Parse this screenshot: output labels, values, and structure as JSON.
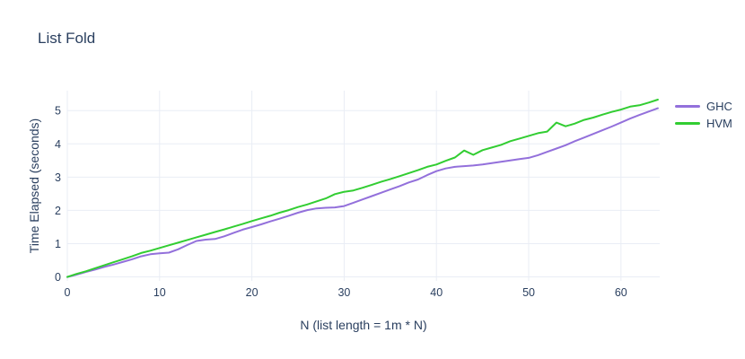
{
  "title": "List Fold",
  "colors": {
    "text": "#2a3f5f",
    "grid": "#e9edf5",
    "background": "#ffffff",
    "ghc_line": "#9370db",
    "hvm_line": "#32cd32"
  },
  "legend": {
    "items": [
      {
        "label": "GHC",
        "color": "#9370db"
      },
      {
        "label": "HVM",
        "color": "#32cd32"
      }
    ]
  },
  "chart_data": {
    "type": "line",
    "title": "List Fold",
    "xlabel": "N (list length = 1m * N)",
    "ylabel": "Time Elapsed (seconds)",
    "xlim": [
      0,
      64.2
    ],
    "ylim": [
      -0.12,
      5.6
    ],
    "xticks": [
      0,
      10,
      20,
      30,
      40,
      50,
      60
    ],
    "yticks": [
      0,
      1,
      2,
      3,
      4,
      5
    ],
    "grid": true,
    "legend_position": "outside-right-top",
    "x": [
      0,
      1,
      2,
      3,
      4,
      5,
      6,
      7,
      8,
      9,
      10,
      11,
      12,
      13,
      14,
      15,
      16,
      17,
      18,
      19,
      20,
      21,
      22,
      23,
      24,
      25,
      26,
      27,
      28,
      29,
      30,
      31,
      32,
      33,
      34,
      35,
      36,
      37,
      38,
      39,
      40,
      41,
      42,
      43,
      44,
      45,
      46,
      47,
      48,
      49,
      50,
      51,
      52,
      53,
      54,
      55,
      56,
      57,
      58,
      59,
      60,
      61,
      62,
      63,
      64
    ],
    "series": [
      {
        "name": "GHC",
        "color": "#9370db",
        "values": [
          0.0,
          0.07,
          0.15,
          0.22,
          0.3,
          0.37,
          0.45,
          0.53,
          0.62,
          0.68,
          0.71,
          0.73,
          0.83,
          0.96,
          1.08,
          1.12,
          1.14,
          1.22,
          1.32,
          1.42,
          1.5,
          1.58,
          1.67,
          1.75,
          1.84,
          1.93,
          2.01,
          2.06,
          2.08,
          2.09,
          2.13,
          2.23,
          2.33,
          2.43,
          2.53,
          2.63,
          2.73,
          2.84,
          2.93,
          3.06,
          3.18,
          3.26,
          3.31,
          3.33,
          3.35,
          3.38,
          3.42,
          3.46,
          3.5,
          3.54,
          3.58,
          3.66,
          3.76,
          3.86,
          3.96,
          4.08,
          4.19,
          4.3,
          4.41,
          4.52,
          4.64,
          4.76,
          4.87,
          4.97,
          5.07
        ]
      },
      {
        "name": "HVM",
        "color": "#32cd32",
        "values": [
          0.0,
          0.09,
          0.17,
          0.26,
          0.35,
          0.44,
          0.53,
          0.62,
          0.72,
          0.79,
          0.87,
          0.95,
          1.03,
          1.11,
          1.19,
          1.27,
          1.35,
          1.43,
          1.51,
          1.59,
          1.68,
          1.76,
          1.84,
          1.93,
          2.01,
          2.1,
          2.18,
          2.27,
          2.36,
          2.49,
          2.56,
          2.6,
          2.68,
          2.77,
          2.86,
          2.94,
          3.03,
          3.12,
          3.21,
          3.31,
          3.38,
          3.49,
          3.59,
          3.8,
          3.67,
          3.81,
          3.89,
          3.97,
          4.08,
          4.16,
          4.24,
          4.32,
          4.37,
          4.64,
          4.53,
          4.61,
          4.72,
          4.79,
          4.88,
          4.96,
          5.03,
          5.12,
          5.16,
          5.24,
          5.33
        ]
      }
    ]
  }
}
